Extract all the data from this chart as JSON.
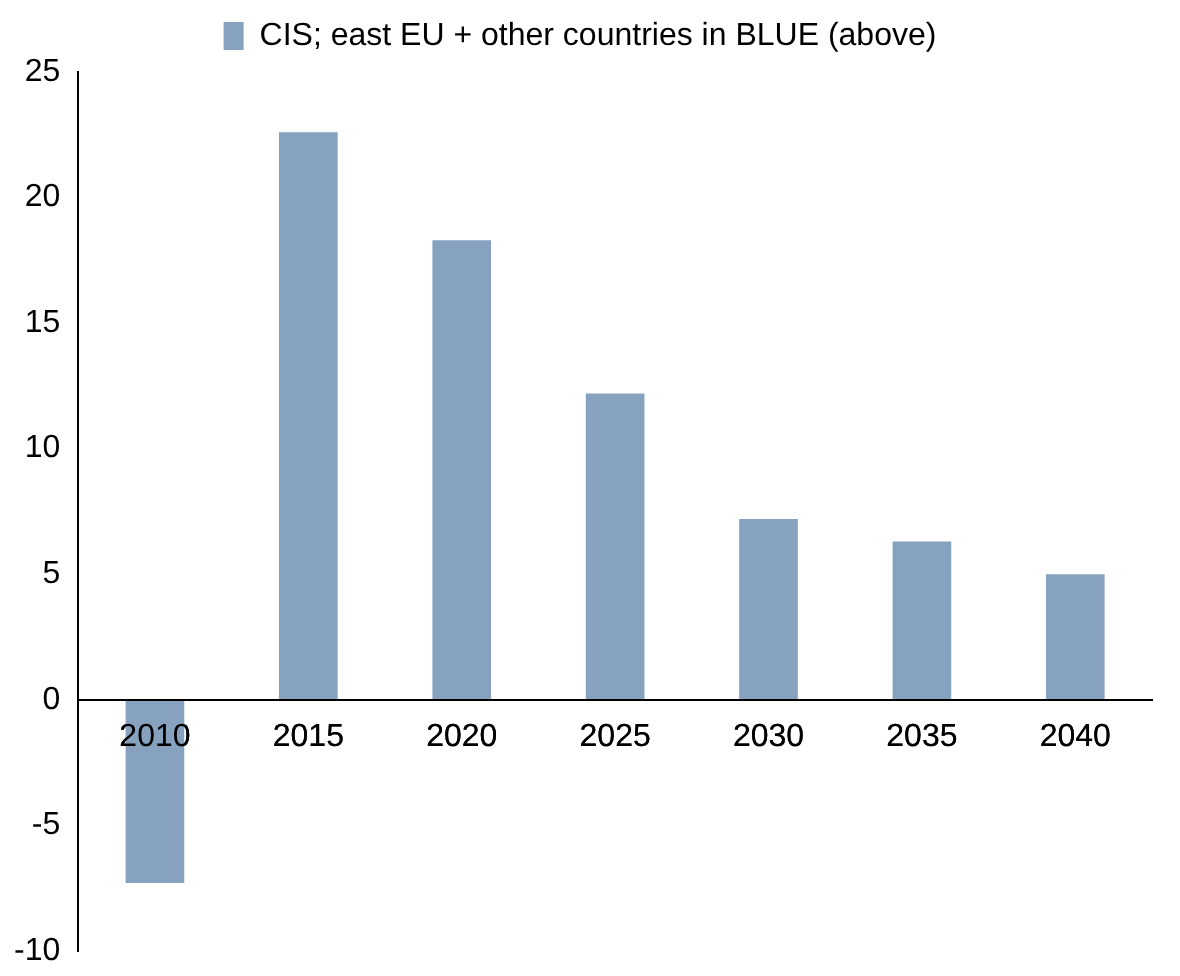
{
  "chart_data": {
    "type": "bar",
    "categories": [
      "2010",
      "2015",
      "2020",
      "2025",
      "2030",
      "2035",
      "2040"
    ],
    "series": [
      {
        "name": "CIS; east EU + other countries in BLUE (above)",
        "color": "#86a2be",
        "values": [
          -7.3,
          22.6,
          18.3,
          12.2,
          7.2,
          6.3,
          5.0
        ]
      }
    ],
    "ylim": [
      -10,
      25
    ],
    "yticks": [
      -10,
      -5,
      0,
      5,
      10,
      15,
      20,
      25
    ],
    "grid": false,
    "legend": "top"
  }
}
